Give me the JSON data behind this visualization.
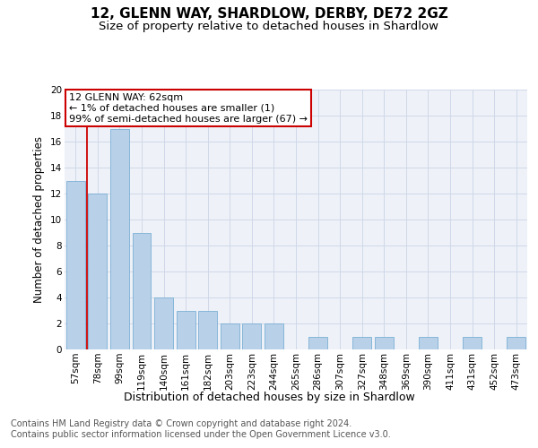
{
  "title1": "12, GLENN WAY, SHARDLOW, DERBY, DE72 2GZ",
  "title2": "Size of property relative to detached houses in Shardlow",
  "xlabel": "Distribution of detached houses by size in Shardlow",
  "ylabel": "Number of detached properties",
  "footer1": "Contains HM Land Registry data © Crown copyright and database right 2024.",
  "footer2": "Contains public sector information licensed under the Open Government Licence v3.0.",
  "categories": [
    "57sqm",
    "78sqm",
    "99sqm",
    "119sqm",
    "140sqm",
    "161sqm",
    "182sqm",
    "203sqm",
    "223sqm",
    "244sqm",
    "265sqm",
    "286sqm",
    "307sqm",
    "327sqm",
    "348sqm",
    "369sqm",
    "390sqm",
    "411sqm",
    "431sqm",
    "452sqm",
    "473sqm"
  ],
  "values": [
    13,
    12,
    17,
    9,
    4,
    3,
    3,
    2,
    2,
    2,
    0,
    1,
    0,
    1,
    1,
    0,
    1,
    0,
    1,
    0,
    1
  ],
  "bar_color": "#b8d0e8",
  "bar_edge_color": "#7bafd4",
  "annotation_box_color": "#cc0000",
  "annotation_line1": "12 GLENN WAY: 62sqm",
  "annotation_line2": "← 1% of detached houses are smaller (1)",
  "annotation_line3": "99% of semi-detached houses are larger (67) →",
  "ylim": [
    0,
    20
  ],
  "yticks": [
    0,
    2,
    4,
    6,
    8,
    10,
    12,
    14,
    16,
    18,
    20
  ],
  "grid_color": "#d0d8e8",
  "bg_color": "#eef2f8",
  "title1_fontsize": 11,
  "title2_fontsize": 9.5,
  "xlabel_fontsize": 9,
  "ylabel_fontsize": 8.5,
  "tick_fontsize": 7.5,
  "footer_fontsize": 7,
  "red_line_x": 0.5
}
